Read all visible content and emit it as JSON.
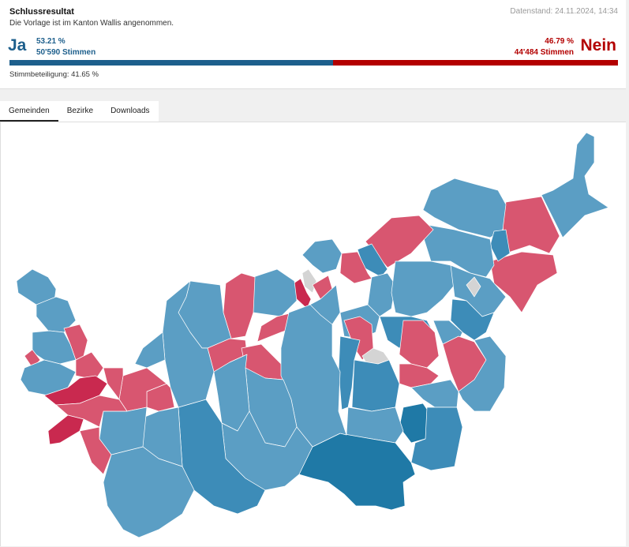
{
  "summary": {
    "title": "Schlussresultat",
    "subtitle": "Die Vorlage ist im Kanton Wallis angenommen.",
    "datenstand": "Datenstand: 24.11.2024, 14:34",
    "ja": {
      "label": "Ja",
      "percent_text": "53.21 %",
      "votes_text": "50'590 Stimmen",
      "share": 0.5321
    },
    "nein": {
      "label": "Nein",
      "percent_text": "46.79 %",
      "votes_text": "44'484 Stimmen",
      "share": 0.4679
    },
    "turnout": "Stimmbeteiligung: 41.65 %"
  },
  "tabs": [
    {
      "label": "Gemeinden",
      "active": true
    },
    {
      "label": "Bezirke",
      "active": false
    },
    {
      "label": "Downloads",
      "active": false
    }
  ],
  "map": {
    "legend_colors": {
      "ja_strong": "#1f79a6",
      "ja_medium": "#3d8cb8",
      "ja_light": "#5b9ec4",
      "nein_light": "#d85670",
      "nein_strong": "#c9294f",
      "no_data": "#d4d4d4"
    }
  }
}
